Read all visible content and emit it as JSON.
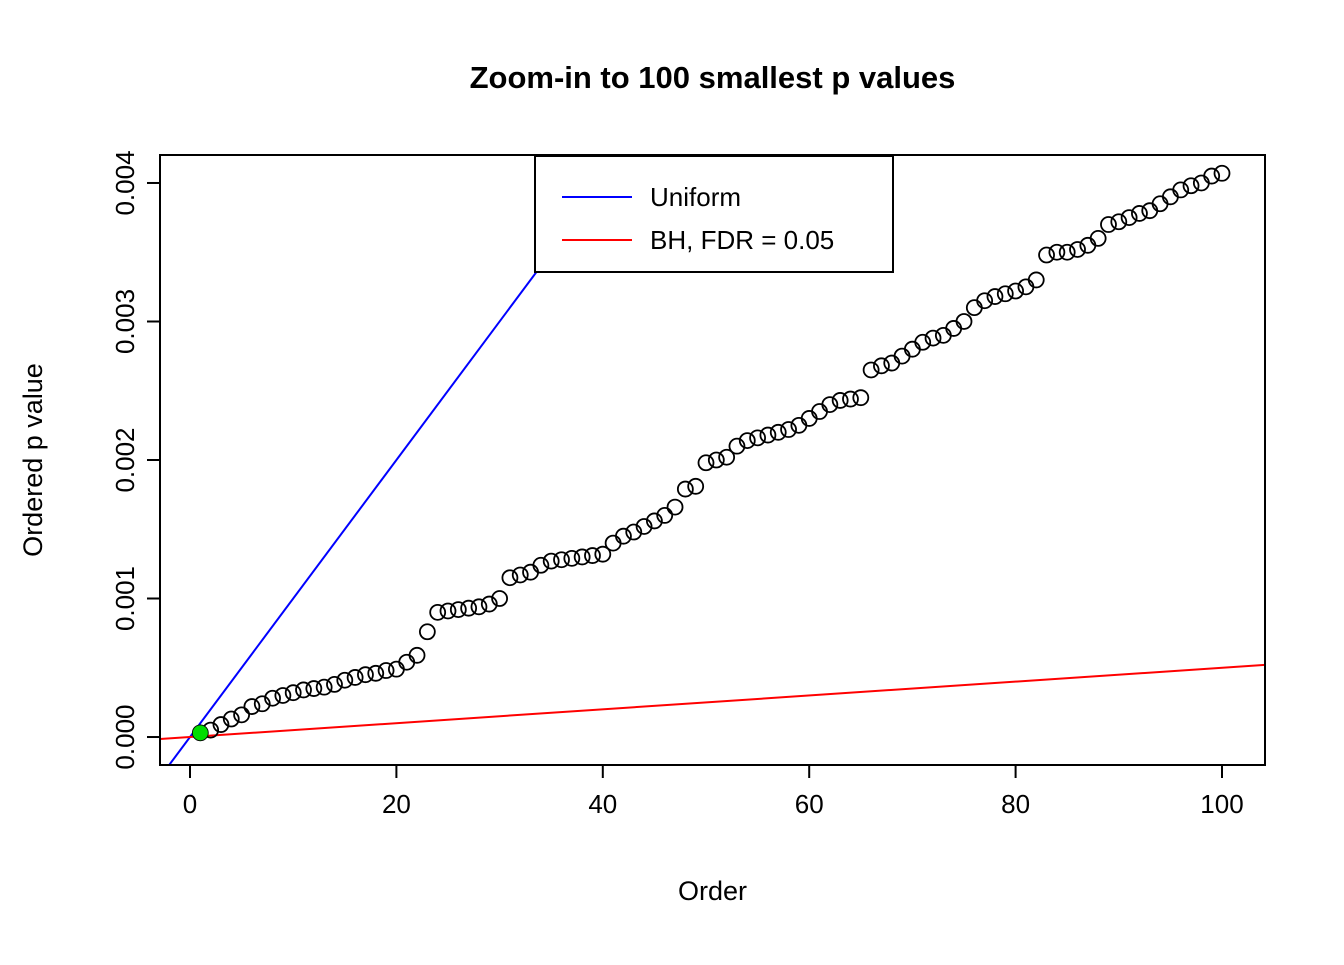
{
  "chart_data": {
    "type": "scatter",
    "title": "Zoom-in to 100 smallest p values",
    "xlabel": "Order",
    "ylabel": "Ordered p value",
    "xlim": [
      -2.907,
      104.167
    ],
    "ylim": [
      -0.000202,
      0.004202
    ],
    "grid": false,
    "x_ticks": [
      0,
      20,
      40,
      60,
      80,
      100
    ],
    "x_tick_labels": [
      "0",
      "20",
      "40",
      "60",
      "80",
      "100"
    ],
    "y_ticks": [
      0,
      0.001,
      0.002,
      0.003,
      0.004
    ],
    "y_tick_labels": [
      "0.000",
      "0.001",
      "0.002",
      "0.003",
      "0.004"
    ],
    "points": {
      "marker": "open-circle",
      "color": "#000000",
      "x": [
        1,
        2,
        3,
        4,
        5,
        6,
        7,
        8,
        9,
        10,
        11,
        12,
        13,
        14,
        15,
        16,
        17,
        18,
        19,
        20,
        21,
        22,
        23,
        24,
        25,
        26,
        27,
        28,
        29,
        30,
        31,
        32,
        33,
        34,
        35,
        36,
        37,
        38,
        39,
        40,
        41,
        42,
        43,
        44,
        45,
        46,
        47,
        48,
        49,
        50,
        51,
        52,
        53,
        54,
        55,
        56,
        57,
        58,
        59,
        60,
        61,
        62,
        63,
        64,
        65,
        66,
        67,
        68,
        69,
        70,
        71,
        72,
        73,
        74,
        75,
        76,
        77,
        78,
        79,
        80,
        81,
        82,
        83,
        84,
        85,
        86,
        87,
        88,
        89,
        90,
        91,
        92,
        93,
        94,
        95,
        96,
        97,
        98,
        99,
        100
      ],
      "y": [
        3e-05,
        5e-05,
        9e-05,
        0.00013,
        0.00016,
        0.00022,
        0.00024,
        0.00028,
        0.0003,
        0.00032,
        0.00034,
        0.00035,
        0.00036,
        0.00038,
        0.00041,
        0.00043,
        0.00045,
        0.00046,
        0.00048,
        0.00049,
        0.00054,
        0.00059,
        0.00076,
        0.0009,
        0.00091,
        0.00092,
        0.00093,
        0.00094,
        0.00096,
        0.001,
        0.00115,
        0.00117,
        0.00119,
        0.00124,
        0.00127,
        0.00128,
        0.00129,
        0.0013,
        0.00131,
        0.00132,
        0.0014,
        0.00145,
        0.00148,
        0.00152,
        0.00156,
        0.0016,
        0.00166,
        0.00179,
        0.00181,
        0.00198,
        0.002,
        0.00202,
        0.0021,
        0.00214,
        0.00216,
        0.00218,
        0.0022,
        0.00222,
        0.00225,
        0.0023,
        0.00235,
        0.0024,
        0.00243,
        0.00244,
        0.00245,
        0.00265,
        0.00268,
        0.0027,
        0.00275,
        0.0028,
        0.00285,
        0.00288,
        0.0029,
        0.00295,
        0.003,
        0.0031,
        0.00315,
        0.00318,
        0.0032,
        0.00322,
        0.00325,
        0.0033,
        0.00348,
        0.0035,
        0.0035,
        0.00352,
        0.00355,
        0.0036,
        0.0037,
        0.00372,
        0.00375,
        0.00378,
        0.0038,
        0.00385,
        0.0039,
        0.00395,
        0.00398,
        0.004,
        0.00405,
        0.00407
      ]
    },
    "highlight_point": {
      "x": 1,
      "y": 3e-05,
      "color": "#00DD00",
      "marker": "filled-circle"
    },
    "lines": [
      {
        "name": "Uniform",
        "color": "#0000FF",
        "slope": 0.0001,
        "intercept": 0
      },
      {
        "name": "BH, FDR = 0.05",
        "color": "#FF0000",
        "slope": 5e-06,
        "intercept": 0
      }
    ],
    "legend": {
      "position": "top",
      "entries": [
        {
          "label": "Uniform",
          "color": "#0000FF"
        },
        {
          "label": "BH, FDR = 0.05",
          "color": "#FF0000"
        }
      ]
    }
  }
}
